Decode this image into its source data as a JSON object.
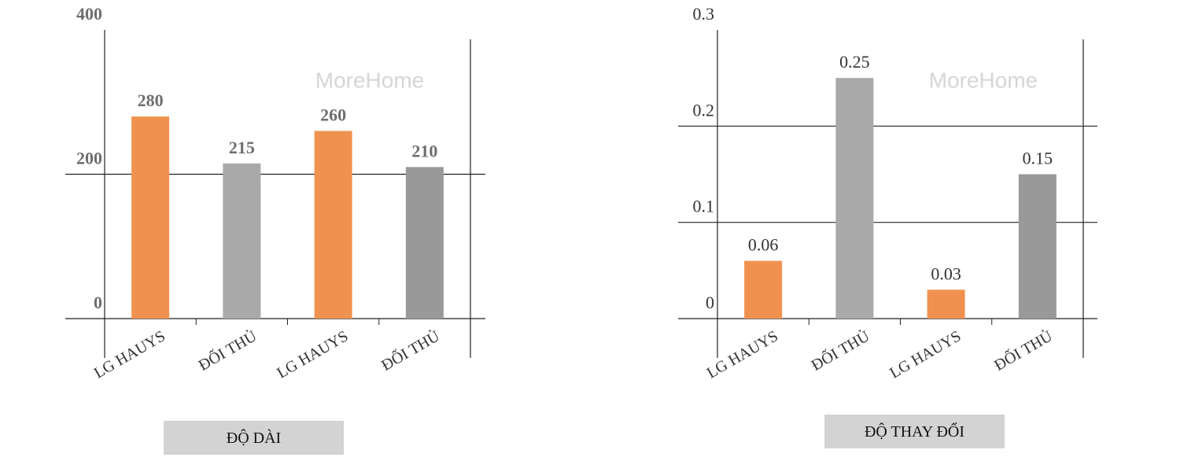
{
  "chart_data": [
    {
      "type": "bar",
      "title": "ĐỘ DÀI",
      "watermark": "MoreHome",
      "categories": [
        "LG HAUYS",
        "ĐỐI THỦ",
        "LG HAUYS",
        "ĐỐI THỦ"
      ],
      "values": [
        280,
        215,
        260,
        210
      ],
      "colors": [
        "#f0924f",
        "#a9a9a9",
        "#f0924f",
        "#999999"
      ],
      "ylim": [
        0,
        400
      ],
      "yticks": [
        0,
        200,
        400
      ],
      "grid": true
    },
    {
      "type": "bar",
      "title": "ĐỘ THAY ĐỔI",
      "watermark": "MoreHome",
      "categories": [
        "LG HAUYS",
        "ĐỐI THỦ",
        "LG HAUYS",
        "ĐỐI THỦ"
      ],
      "values": [
        0.06,
        0.25,
        0.03,
        0.15
      ],
      "colors": [
        "#f0924f",
        "#a9a9a9",
        "#f0924f",
        "#999999"
      ],
      "ylim": [
        0,
        0.3
      ],
      "yticks": [
        0,
        0.1,
        0.2,
        0.3
      ],
      "grid": true
    }
  ]
}
